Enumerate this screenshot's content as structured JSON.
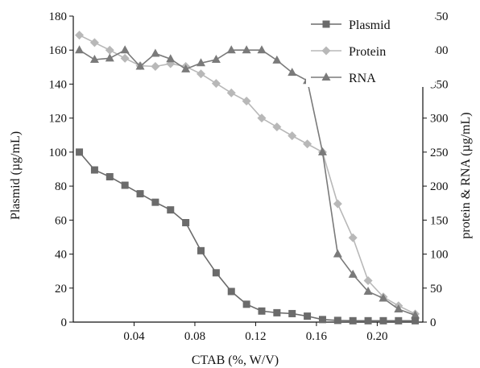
{
  "chart_data": {
    "type": "line",
    "xlabel": "CTAB (%, W/V)",
    "ylabel_left": "Plasmid (µg/mL)",
    "ylabel_right": "protein & RNA (µg/mL)",
    "xlim": [
      0,
      0.23
    ],
    "ylim_left": [
      0,
      180
    ],
    "ylim_right": [
      0,
      450
    ],
    "x_ticks": [
      0.04,
      0.08,
      0.12,
      0.16,
      0.2
    ],
    "x_tick_labels": [
      "0.04",
      "0.08",
      "0.12",
      "0.16",
      "0.20"
    ],
    "y_left_ticks": [
      0,
      20,
      40,
      60,
      80,
      100,
      120,
      140,
      160,
      180
    ],
    "y_right_ticks": [
      0,
      50,
      100,
      150,
      200,
      250,
      300,
      350,
      400,
      450
    ],
    "grid": false,
    "legend_position": "top-right",
    "series": [
      {
        "name": "Plasmid",
        "axis": "left",
        "marker": "square",
        "color": "#6b6b6b",
        "x": [
          0.004,
          0.014,
          0.024,
          0.034,
          0.044,
          0.054,
          0.064,
          0.074,
          0.084,
          0.094,
          0.104,
          0.114,
          0.124,
          0.134,
          0.144,
          0.154,
          0.164,
          0.174,
          0.184,
          0.194,
          0.204,
          0.214,
          0.225
        ],
        "values": [
          100,
          89.5,
          85.5,
          80.5,
          75.5,
          70.5,
          66,
          58.5,
          42,
          29,
          18,
          10.5,
          6.5,
          5.5,
          5,
          3.5,
          1.5,
          1,
          0.8,
          0.8,
          0.8,
          0.8,
          0.8
        ]
      },
      {
        "name": "Protein",
        "axis": "right",
        "marker": "diamond",
        "color": "#b8b8b8",
        "x": [
          0.004,
          0.014,
          0.024,
          0.034,
          0.044,
          0.054,
          0.064,
          0.074,
          0.084,
          0.094,
          0.104,
          0.114,
          0.124,
          0.134,
          0.144,
          0.154,
          0.164,
          0.174,
          0.184,
          0.194,
          0.204,
          0.214,
          0.225
        ],
        "values": [
          422,
          411,
          400,
          388,
          377,
          376,
          380,
          376,
          365,
          351,
          337,
          325,
          300,
          287,
          274,
          262,
          250,
          174,
          124,
          61,
          37,
          24,
          12
        ]
      },
      {
        "name": "RNA",
        "axis": "right",
        "marker": "triangle",
        "color": "#7a7a7a",
        "x": [
          0.004,
          0.014,
          0.024,
          0.034,
          0.044,
          0.054,
          0.064,
          0.074,
          0.084,
          0.094,
          0.104,
          0.114,
          0.124,
          0.134,
          0.144,
          0.154,
          0.164,
          0.174,
          0.184,
          0.194,
          0.204,
          0.214,
          0.225
        ],
        "values": [
          400,
          386,
          388,
          400,
          376,
          395,
          387,
          372,
          381,
          386,
          400,
          400,
          400,
          385,
          367,
          355,
          250,
          100,
          70,
          45,
          35,
          19,
          10
        ]
      }
    ]
  }
}
